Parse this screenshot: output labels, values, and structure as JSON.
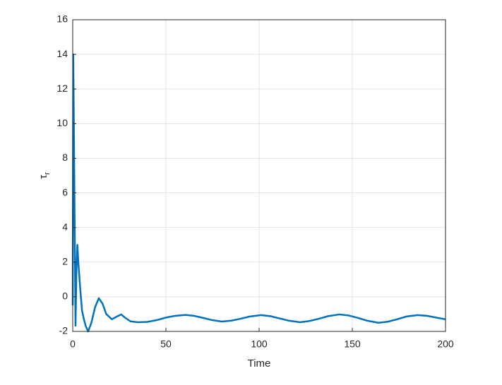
{
  "chart_data": {
    "type": "line",
    "xlabel": "Time",
    "ylabel": {
      "base": "τ",
      "sub": "r"
    },
    "x": [
      0,
      0.3,
      1.5,
      2,
      2.5,
      3,
      4,
      5,
      6,
      7,
      8.3,
      10,
      12,
      14,
      16,
      18,
      21,
      23.5,
      26,
      28,
      31,
      35,
      40,
      45,
      50,
      55,
      60.5,
      65,
      70,
      75,
      80,
      85,
      90,
      95,
      101,
      106,
      111,
      116,
      122,
      127,
      132,
      137,
      143,
      148,
      153,
      158,
      164,
      169,
      174,
      179,
      185,
      190,
      195,
      200
    ],
    "series": [
      {
        "color": "#0072BD",
        "values": [
          -0.5,
          14,
          -1.67,
          1.5,
          3.0,
          2.0,
          0.5,
          -0.8,
          -1.3,
          -1.7,
          -2.0,
          -1.5,
          -0.6,
          -0.08,
          -0.4,
          -1.0,
          -1.3,
          -1.15,
          -1.02,
          -1.2,
          -1.42,
          -1.47,
          -1.45,
          -1.35,
          -1.2,
          -1.1,
          -1.05,
          -1.1,
          -1.22,
          -1.35,
          -1.43,
          -1.38,
          -1.27,
          -1.14,
          -1.06,
          -1.12,
          -1.25,
          -1.38,
          -1.47,
          -1.4,
          -1.27,
          -1.12,
          -1.02,
          -1.08,
          -1.22,
          -1.38,
          -1.5,
          -1.44,
          -1.3,
          -1.14,
          -1.06,
          -1.1,
          -1.2,
          -1.3
        ]
      }
    ],
    "xlim": [
      0,
      200
    ],
    "xticks": [
      0,
      50,
      100,
      150,
      200
    ],
    "ylim": [
      -2,
      16
    ],
    "yticks": [
      -2,
      0,
      2,
      4,
      6,
      8,
      10,
      12,
      14,
      16
    ],
    "grid": true
  }
}
